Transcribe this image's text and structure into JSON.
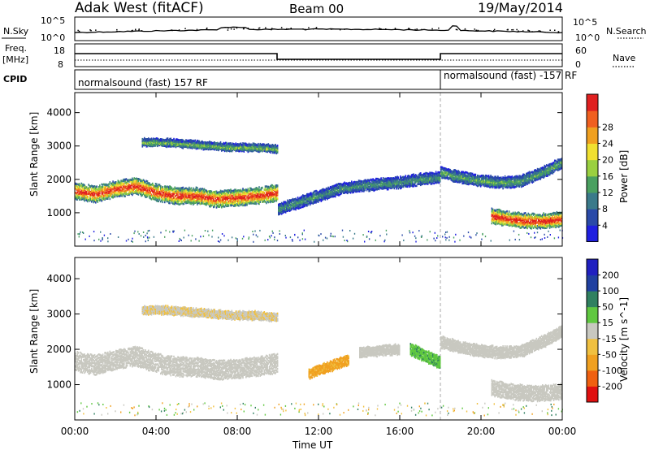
{
  "header": {
    "title_left": "Adak West (fitACF)",
    "title_center": "Beam 00",
    "title_right": "19/May/2014"
  },
  "top_panel": {
    "left_label": "N.Sky",
    "right_label": "N.Search",
    "ticks_left": [
      "10^5",
      "10^0"
    ],
    "ticks_right": [
      "10^5",
      "10^0"
    ]
  },
  "freq_panel": {
    "left_label_1": "Freq.",
    "left_label_2": "[MHz]",
    "right_label": "Nave",
    "ticks_left": [
      "18",
      "8"
    ],
    "ticks_right": [
      "60",
      "0"
    ]
  },
  "cpid_panel": {
    "label": "CPID",
    "mode_1": "normalsound (fast) 157 RF",
    "mode_2": "normalsound (fast) -157 RF"
  },
  "colors": {
    "power_scale": [
      "#1f1fe0",
      "#2a4aa8",
      "#3a7a8a",
      "#4aa060",
      "#9ad040",
      "#f0e030",
      "#f0a020",
      "#f06020",
      "#e02020"
    ],
    "velocity_scale": [
      "#e01010",
      "#f06010",
      "#f0a020",
      "#f0c040",
      "#c8c8c0",
      "#60c840",
      "#308060",
      "#2040a0",
      "#2020c0"
    ]
  },
  "chart_data": [
    {
      "type": "heatmap",
      "title": "Power",
      "ylabel": "Slant Range [km]",
      "xlabel": "Time UT",
      "x_ticks": [
        "00:00",
        "04:00",
        "08:00",
        "12:00",
        "16:00",
        "20:00",
        "00:00"
      ],
      "y_ticks": [
        "1000",
        "2000",
        "3000",
        "4000"
      ],
      "ylim": [
        0,
        4600
      ],
      "colorbar_label": "Power [dB]",
      "colorbar_ticks": [
        "4",
        "8",
        "12",
        "16",
        "20",
        "24",
        "28"
      ],
      "layers": [
        {
          "t0": 0.0,
          "t1": 10.0,
          "r": [
            1650,
            1550,
            1700,
            1800,
            1600,
            1500,
            1500,
            1400,
            1450,
            1500,
            1600
          ],
          "width": 450,
          "level": 0.8
        },
        {
          "t0": 3.3,
          "t1": 10.0,
          "r": [
            3100,
            3100,
            3050,
            3000,
            2950,
            2950,
            2900
          ],
          "width": 200,
          "level": 0.4
        },
        {
          "t0": 10.0,
          "t1": 18.0,
          "r": [
            1100,
            1300,
            1500,
            1700,
            1800,
            1850,
            1900,
            2000,
            2050
          ],
          "width": 300,
          "level": 0.3
        },
        {
          "t0": 18.0,
          "t1": 24.0,
          "r": [
            2200,
            2050,
            1950,
            1900,
            1950,
            2200,
            2500
          ],
          "width": 300,
          "level": 0.35
        },
        {
          "t0": 20.5,
          "t1": 24.0,
          "r": [
            900,
            800,
            750,
            750,
            800
          ],
          "width": 400,
          "level": 0.85
        }
      ]
    },
    {
      "type": "heatmap",
      "title": "Velocity",
      "ylabel": "Slant Range [km]",
      "xlabel": "Time UT",
      "x_ticks": [
        "00:00",
        "04:00",
        "08:00",
        "12:00",
        "16:00",
        "20:00",
        "00:00"
      ],
      "y_ticks": [
        "1000",
        "2000",
        "3000",
        "4000"
      ],
      "ylim": [
        0,
        4600
      ],
      "colorbar_label": "Velocity [m s^-1]",
      "colorbar_ticks": [
        "200",
        "100",
        "50",
        "15",
        "-15",
        "-50",
        "-100",
        "-200"
      ],
      "layers": [
        {
          "t0": 0.0,
          "t1": 10.0,
          "r": [
            1650,
            1550,
            1700,
            1800,
            1600,
            1500,
            1500,
            1400,
            1450,
            1500,
            1600
          ],
          "width": 500,
          "velocity": 0
        },
        {
          "t0": 3.3,
          "t1": 10.0,
          "r": [
            3100,
            3100,
            3050,
            3000,
            2950,
            2950,
            2900
          ],
          "width": 200,
          "velocity": -10
        },
        {
          "t0": 11.5,
          "t1": 13.5,
          "r": [
            1300,
            1500,
            1700
          ],
          "width": 250,
          "velocity": -60
        },
        {
          "t0": 14.0,
          "t1": 16.0,
          "r": [
            1900,
            1950,
            2000
          ],
          "width": 250,
          "velocity": 0
        },
        {
          "t0": 16.5,
          "t1": 18.0,
          "r": [
            2000,
            1800,
            1600
          ],
          "width": 300,
          "velocity": 40
        },
        {
          "t0": 18.0,
          "t1": 24.0,
          "r": [
            2200,
            2050,
            1950,
            1900,
            1950,
            2200,
            2500
          ],
          "width": 300,
          "velocity": 0
        },
        {
          "t0": 20.5,
          "t1": 24.0,
          "r": [
            900,
            800,
            750,
            750,
            800
          ],
          "width": 400,
          "velocity": 0
        }
      ]
    }
  ]
}
